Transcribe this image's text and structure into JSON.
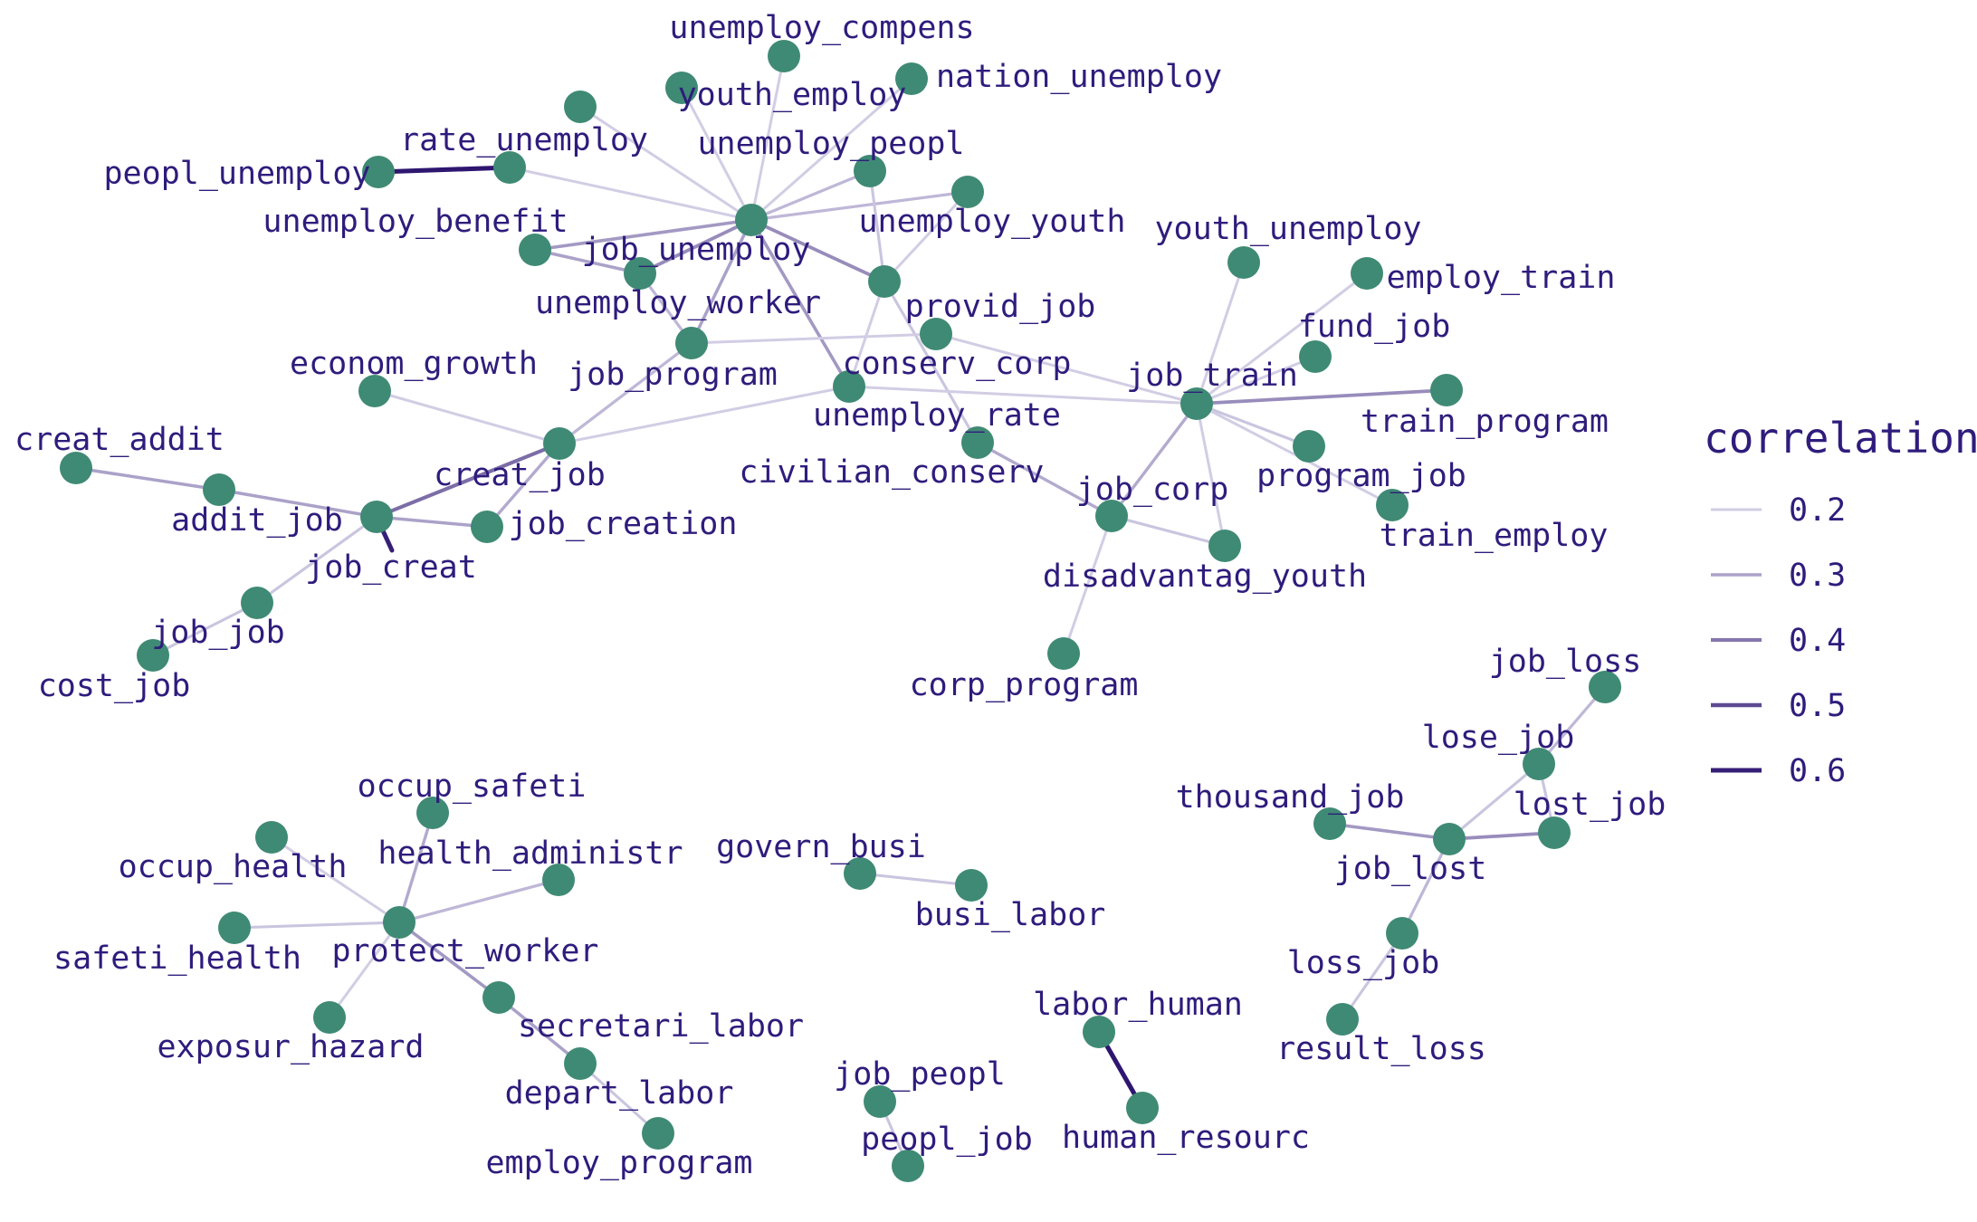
{
  "colors": {
    "node": "#3f8a74",
    "label": "#2f1c7c",
    "edge_low": "#dad6ea",
    "edge_high": "#2e1670",
    "background": "#ffffff"
  },
  "legend": {
    "title": "correlation",
    "entries": [
      {
        "label": "0.2",
        "value": 0.2
      },
      {
        "label": "0.3",
        "value": 0.3
      },
      {
        "label": "0.4",
        "value": 0.4
      },
      {
        "label": "0.5",
        "value": 0.5
      },
      {
        "label": "0.6",
        "value": 0.6
      }
    ]
  },
  "nodes": [
    {
      "id": "unemploy_compens",
      "label": "unemploy_compens"
    },
    {
      "id": "youth_employ",
      "label": "youth_employ"
    },
    {
      "id": "nation_unemploy",
      "label": "nation_unemploy"
    },
    {
      "id": "unlabeled_node",
      "label": ""
    },
    {
      "id": "rate_unemploy",
      "label": "rate_unemploy"
    },
    {
      "id": "peopl_unemploy",
      "label": "peopl_unemploy"
    },
    {
      "id": "unemploy_peopl",
      "label": "unemploy_peopl"
    },
    {
      "id": "unemploy_youth",
      "label": "unemploy_youth"
    },
    {
      "id": "unemploy_benefit",
      "label": "unemploy_benefit"
    },
    {
      "id": "job_unemploy",
      "label": "job_unemploy"
    },
    {
      "id": "unemploy_worker",
      "label": "unemploy_worker"
    },
    {
      "id": "provid_job",
      "label": "provid_job"
    },
    {
      "id": "conserv_corp",
      "label": "conserv_corp"
    },
    {
      "id": "job_program",
      "label": "job_program"
    },
    {
      "id": "unemploy_rate",
      "label": "unemploy_rate"
    },
    {
      "id": "econom_growth",
      "label": "econom_growth"
    },
    {
      "id": "youth_unemploy",
      "label": "youth_unemploy"
    },
    {
      "id": "employ_train",
      "label": "employ_train"
    },
    {
      "id": "fund_job",
      "label": "fund_job"
    },
    {
      "id": "job_train",
      "label": "job_train"
    },
    {
      "id": "train_program",
      "label": "train_program"
    },
    {
      "id": "program_job",
      "label": "program_job"
    },
    {
      "id": "train_employ",
      "label": "train_employ"
    },
    {
      "id": "civilian_conserv",
      "label": "civilian_conserv"
    },
    {
      "id": "job_corp",
      "label": "job_corp"
    },
    {
      "id": "disadvantag_youth",
      "label": "disadvantag_youth"
    },
    {
      "id": "corp_program",
      "label": "corp_program"
    },
    {
      "id": "creat_addit",
      "label": "creat_addit"
    },
    {
      "id": "addit_job",
      "label": "addit_job"
    },
    {
      "id": "creat_job",
      "label": "creat_job"
    },
    {
      "id": "job_creat",
      "label": "job_creat"
    },
    {
      "id": "job_creation",
      "label": "job_creation"
    },
    {
      "id": "job_job",
      "label": "job_job"
    },
    {
      "id": "cost_job",
      "label": "cost_job"
    },
    {
      "id": "job_loss",
      "label": "job_loss"
    },
    {
      "id": "lose_job",
      "label": "lose_job"
    },
    {
      "id": "thousand_job",
      "label": "thousand_job"
    },
    {
      "id": "lost_job",
      "label": "lost_job"
    },
    {
      "id": "job_lost",
      "label": "job_lost"
    },
    {
      "id": "loss_job",
      "label": "loss_job"
    },
    {
      "id": "result_loss",
      "label": "result_loss"
    },
    {
      "id": "occup_safeti",
      "label": "occup_safeti"
    },
    {
      "id": "occup_health",
      "label": "occup_health"
    },
    {
      "id": "health_administr",
      "label": "health_administr"
    },
    {
      "id": "safeti_health",
      "label": "safeti_health"
    },
    {
      "id": "protect_worker",
      "label": "protect_worker"
    },
    {
      "id": "exposur_hazard",
      "label": "exposur_hazard"
    },
    {
      "id": "secretari_labor",
      "label": "secretari_labor"
    },
    {
      "id": "depart_labor",
      "label": "depart_labor"
    },
    {
      "id": "employ_program",
      "label": "employ_program"
    },
    {
      "id": "govern_busi",
      "label": "govern_busi"
    },
    {
      "id": "busi_labor",
      "label": "busi_labor"
    },
    {
      "id": "job_peopl",
      "label": "job_peopl"
    },
    {
      "id": "peopl_job",
      "label": "peopl_job"
    },
    {
      "id": "labor_human",
      "label": "labor_human"
    },
    {
      "id": "human_resourc",
      "label": "human_resourc"
    }
  ],
  "edges": [
    {
      "source": "peopl_unemploy",
      "target": "rate_unemploy",
      "correlation": 0.62
    },
    {
      "source": "rate_unemploy",
      "target": "job_unemploy",
      "correlation": 0.2
    },
    {
      "source": "unlabeled_node",
      "target": "job_unemploy",
      "correlation": 0.2
    },
    {
      "source": "youth_employ",
      "target": "job_unemploy",
      "correlation": 0.2
    },
    {
      "source": "unemploy_compens",
      "target": "job_unemploy",
      "correlation": 0.2
    },
    {
      "source": "nation_unemploy",
      "target": "job_unemploy",
      "correlation": 0.2
    },
    {
      "source": "unemploy_peopl",
      "target": "job_unemploy",
      "correlation": 0.25
    },
    {
      "source": "unemploy_youth",
      "target": "job_unemploy",
      "correlation": 0.25
    },
    {
      "source": "unemploy_benefit",
      "target": "job_unemploy",
      "correlation": 0.32
    },
    {
      "source": "unemploy_benefit",
      "target": "unemploy_worker",
      "correlation": 0.3
    },
    {
      "source": "unemploy_worker",
      "target": "job_unemploy",
      "correlation": 0.35
    },
    {
      "source": "unemploy_worker",
      "target": "job_program",
      "correlation": 0.25
    },
    {
      "source": "job_program",
      "target": "job_unemploy",
      "correlation": 0.3
    },
    {
      "source": "job_unemploy",
      "target": "provid_job",
      "correlation": 0.35
    },
    {
      "source": "job_unemploy",
      "target": "unemploy_rate",
      "correlation": 0.32
    },
    {
      "source": "unemploy_peopl",
      "target": "provid_job",
      "correlation": 0.22
    },
    {
      "source": "unemploy_youth",
      "target": "provid_job",
      "correlation": 0.2
    },
    {
      "source": "provid_job",
      "target": "unemploy_rate",
      "correlation": 0.2
    },
    {
      "source": "provid_job",
      "target": "civilian_conserv",
      "correlation": 0.22
    },
    {
      "source": "job_program",
      "target": "conserv_corp",
      "correlation": 0.2
    },
    {
      "source": "conserv_corp",
      "target": "job_train",
      "correlation": 0.2
    },
    {
      "source": "unemploy_rate",
      "target": "job_train",
      "correlation": 0.2
    },
    {
      "source": "creat_job",
      "target": "unemploy_rate",
      "correlation": 0.2
    },
    {
      "source": "econom_growth",
      "target": "creat_job",
      "correlation": 0.2
    },
    {
      "source": "job_program",
      "target": "creat_job",
      "correlation": 0.25
    },
    {
      "source": "creat_job",
      "target": "job_creat",
      "correlation": 0.42
    },
    {
      "source": "creat_job",
      "target": "job_creation",
      "correlation": 0.28
    },
    {
      "source": "job_creat",
      "target": "job_creation",
      "correlation": 0.3
    },
    {
      "source": "creat_addit",
      "target": "addit_job",
      "correlation": 0.3
    },
    {
      "source": "addit_job",
      "target": "job_creat",
      "correlation": 0.3
    },
    {
      "source": "job_creat",
      "target": "job_creat_tail",
      "correlation": 0.6
    },
    {
      "source": "job_creat",
      "target": "job_job",
      "correlation": 0.22
    },
    {
      "source": "job_job",
      "target": "cost_job",
      "correlation": 0.22
    },
    {
      "source": "job_train",
      "target": "youth_unemploy",
      "correlation": 0.2
    },
    {
      "source": "job_train",
      "target": "employ_train",
      "correlation": 0.2
    },
    {
      "source": "job_train",
      "target": "fund_job",
      "correlation": 0.2
    },
    {
      "source": "job_train",
      "target": "train_program",
      "correlation": 0.35
    },
    {
      "source": "job_train",
      "target": "program_job",
      "correlation": 0.22
    },
    {
      "source": "job_train",
      "target": "train_employ",
      "correlation": 0.2
    },
    {
      "source": "job_train",
      "target": "job_corp",
      "correlation": 0.28
    },
    {
      "source": "job_train",
      "target": "disadvantag_youth",
      "correlation": 0.2
    },
    {
      "source": "civilian_conserv",
      "target": "job_corp",
      "correlation": 0.28
    },
    {
      "source": "job_corp",
      "target": "disadvantag_youth",
      "correlation": 0.22
    },
    {
      "source": "job_corp",
      "target": "corp_program",
      "correlation": 0.2
    },
    {
      "source": "job_loss",
      "target": "lose_job",
      "correlation": 0.25
    },
    {
      "source": "lose_job",
      "target": "lost_job",
      "correlation": 0.22
    },
    {
      "source": "lose_job",
      "target": "job_lost",
      "correlation": 0.22
    },
    {
      "source": "thousand_job",
      "target": "job_lost",
      "correlation": 0.32
    },
    {
      "source": "job_lost",
      "target": "lost_job",
      "correlation": 0.35
    },
    {
      "source": "job_lost",
      "target": "loss_job",
      "correlation": 0.25
    },
    {
      "source": "loss_job",
      "target": "result_loss",
      "correlation": 0.22
    },
    {
      "source": "occup_safeti",
      "target": "protect_worker",
      "correlation": 0.28
    },
    {
      "source": "occup_health",
      "target": "protect_worker",
      "correlation": 0.2
    },
    {
      "source": "health_administr",
      "target": "protect_worker",
      "correlation": 0.25
    },
    {
      "source": "safeti_health",
      "target": "protect_worker",
      "correlation": 0.22
    },
    {
      "source": "exposur_hazard",
      "target": "protect_worker",
      "correlation": 0.2
    },
    {
      "source": "protect_worker",
      "target": "secretari_labor",
      "correlation": 0.32
    },
    {
      "source": "secretari_labor",
      "target": "depart_labor",
      "correlation": 0.3
    },
    {
      "source": "depart_labor",
      "target": "employ_program",
      "correlation": 0.22
    },
    {
      "source": "govern_busi",
      "target": "busi_labor",
      "correlation": 0.22
    },
    {
      "source": "job_peopl",
      "target": "peopl_job",
      "correlation": 0.22
    },
    {
      "source": "labor_human",
      "target": "human_resourc",
      "correlation": 0.62
    }
  ]
}
